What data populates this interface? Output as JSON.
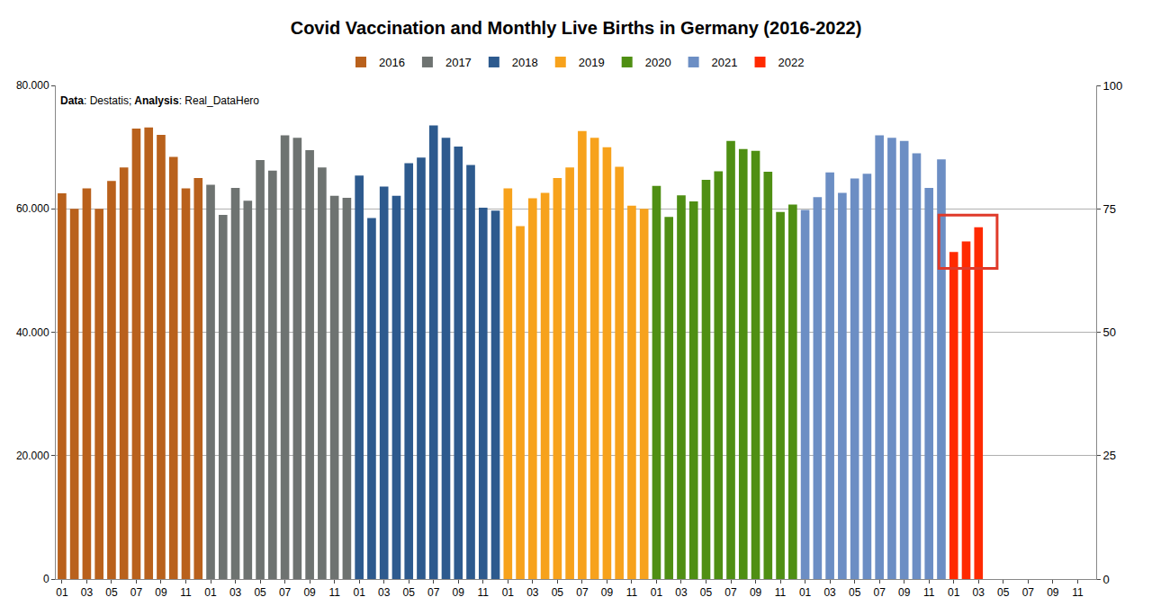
{
  "chart_data": {
    "type": "bar",
    "title": "Covid Vaccination and Monthly Live Births in Germany (2016-2022)",
    "annotations": [
      {
        "text": "Data: Destatis; Analysis: Real_DataHero"
      }
    ],
    "categories": [
      "01",
      null,
      "03",
      null,
      "05",
      null,
      "07",
      null,
      "09",
      null,
      "11",
      null,
      "01",
      null,
      "03",
      null,
      "05",
      null,
      "07",
      null,
      "09",
      null,
      "11",
      null,
      "01",
      null,
      "03",
      null,
      "05",
      null,
      "07",
      null,
      "09",
      null,
      "11",
      null,
      "01",
      null,
      "03",
      null,
      "05",
      null,
      "07",
      null,
      "09",
      null,
      "11",
      null,
      "01",
      null,
      "03",
      null,
      "05",
      null,
      "07",
      null,
      "09",
      null,
      "11",
      null,
      "01",
      null,
      "03",
      null,
      "05",
      null,
      "07",
      null,
      "09",
      null,
      "11",
      null,
      "01",
      null,
      "03",
      null,
      "05",
      null,
      "07",
      null,
      "09",
      null,
      "11",
      null
    ],
    "series": [
      {
        "name": "2016",
        "color": "#b9611c",
        "values": [
          62500,
          60000,
          63300,
          60000,
          64500,
          66700,
          73000,
          73200,
          72000,
          68400,
          63300,
          65000,
          null,
          null,
          null,
          null,
          null,
          null,
          null,
          null,
          null,
          null,
          null,
          null,
          null,
          null,
          null,
          null,
          null,
          null,
          null,
          null,
          null,
          null,
          null,
          null,
          null,
          null,
          null,
          null,
          null,
          null,
          null,
          null,
          null,
          null,
          null,
          null,
          null,
          null,
          null,
          null,
          null,
          null,
          null,
          null,
          null,
          null,
          null,
          null,
          null,
          null,
          null,
          null,
          null,
          null,
          null,
          null,
          null,
          null,
          null,
          null,
          null,
          null,
          null,
          null,
          null,
          null,
          null,
          null,
          null,
          null,
          null,
          null
        ]
      },
      {
        "name": "2017",
        "color": "#6e7371",
        "values": [
          null,
          null,
          null,
          null,
          null,
          null,
          null,
          null,
          null,
          null,
          null,
          null,
          63900,
          59000,
          63400,
          61300,
          67900,
          66200,
          71900,
          71500,
          69500,
          66700,
          62100,
          61800,
          null,
          null,
          null,
          null,
          null,
          null,
          null,
          null,
          null,
          null,
          null,
          null,
          null,
          null,
          null,
          null,
          null,
          null,
          null,
          null,
          null,
          null,
          null,
          null,
          null,
          null,
          null,
          null,
          null,
          null,
          null,
          null,
          null,
          null,
          null,
          null,
          null,
          null,
          null,
          null,
          null,
          null,
          null,
          null,
          null,
          null,
          null,
          null,
          null,
          null,
          null,
          null,
          null,
          null,
          null,
          null,
          null,
          null,
          null,
          null
        ]
      },
      {
        "name": "2018",
        "color": "#2d5a8e",
        "values": [
          null,
          null,
          null,
          null,
          null,
          null,
          null,
          null,
          null,
          null,
          null,
          null,
          null,
          null,
          null,
          null,
          null,
          null,
          null,
          null,
          null,
          null,
          null,
          null,
          65400,
          58500,
          63600,
          62100,
          67400,
          68300,
          73500,
          71500,
          70100,
          67100,
          60200,
          59700,
          null,
          null,
          null,
          null,
          null,
          null,
          null,
          null,
          null,
          null,
          null,
          null,
          null,
          null,
          null,
          null,
          null,
          null,
          null,
          null,
          null,
          null,
          null,
          null,
          null,
          null,
          null,
          null,
          null,
          null,
          null,
          null,
          null,
          null,
          null,
          null,
          null,
          null,
          null,
          null,
          null,
          null,
          null,
          null,
          null,
          null,
          null,
          null
        ]
      },
      {
        "name": "2019",
        "color": "#f7a21c",
        "values": [
          null,
          null,
          null,
          null,
          null,
          null,
          null,
          null,
          null,
          null,
          null,
          null,
          null,
          null,
          null,
          null,
          null,
          null,
          null,
          null,
          null,
          null,
          null,
          null,
          null,
          null,
          null,
          null,
          null,
          null,
          null,
          null,
          null,
          null,
          null,
          null,
          63300,
          57200,
          61700,
          62600,
          65000,
          66700,
          72600,
          71500,
          70000,
          66800,
          60500,
          60000,
          null,
          null,
          null,
          null,
          null,
          null,
          null,
          null,
          null,
          null,
          null,
          null,
          null,
          null,
          null,
          null,
          null,
          null,
          null,
          null,
          null,
          null,
          null,
          null,
          null,
          null,
          null,
          null,
          null,
          null,
          null,
          null,
          null,
          null,
          null,
          null
        ]
      },
      {
        "name": "2020",
        "color": "#4f8f13",
        "values": [
          null,
          null,
          null,
          null,
          null,
          null,
          null,
          null,
          null,
          null,
          null,
          null,
          null,
          null,
          null,
          null,
          null,
          null,
          null,
          null,
          null,
          null,
          null,
          null,
          null,
          null,
          null,
          null,
          null,
          null,
          null,
          null,
          null,
          null,
          null,
          null,
          null,
          null,
          null,
          null,
          null,
          null,
          null,
          null,
          null,
          null,
          null,
          null,
          63700,
          58700,
          62200,
          61200,
          64700,
          66100,
          71000,
          69700,
          69400,
          66000,
          59500,
          60700,
          null,
          null,
          null,
          null,
          null,
          null,
          null,
          null,
          null,
          null,
          null,
          null,
          null,
          null,
          null,
          null,
          null,
          null,
          null,
          null,
          null,
          null,
          null,
          null
        ]
      },
      {
        "name": "2021",
        "color": "#6c8ec4",
        "values": [
          null,
          null,
          null,
          null,
          null,
          null,
          null,
          null,
          null,
          null,
          null,
          null,
          null,
          null,
          null,
          null,
          null,
          null,
          null,
          null,
          null,
          null,
          null,
          null,
          null,
          null,
          null,
          null,
          null,
          null,
          null,
          null,
          null,
          null,
          null,
          null,
          null,
          null,
          null,
          null,
          null,
          null,
          null,
          null,
          null,
          null,
          null,
          null,
          null,
          null,
          null,
          null,
          null,
          null,
          null,
          null,
          null,
          null,
          null,
          null,
          59800,
          61900,
          65900,
          62600,
          64900,
          65700,
          71900,
          71500,
          71000,
          69000,
          63400,
          68000,
          null,
          null,
          null,
          null,
          null,
          null,
          null,
          null,
          null,
          null,
          null,
          null
        ]
      },
      {
        "name": "2022",
        "color": "#ff2a00",
        "values": [
          null,
          null,
          null,
          null,
          null,
          null,
          null,
          null,
          null,
          null,
          null,
          null,
          null,
          null,
          null,
          null,
          null,
          null,
          null,
          null,
          null,
          null,
          null,
          null,
          null,
          null,
          null,
          null,
          null,
          null,
          null,
          null,
          null,
          null,
          null,
          null,
          null,
          null,
          null,
          null,
          null,
          null,
          null,
          null,
          null,
          null,
          null,
          null,
          null,
          null,
          null,
          null,
          null,
          null,
          null,
          null,
          null,
          null,
          null,
          null,
          null,
          null,
          null,
          null,
          null,
          null,
          null,
          null,
          null,
          null,
          null,
          null,
          53000,
          54700,
          57000,
          null,
          null,
          null,
          null,
          null,
          null,
          null,
          null,
          null
        ]
      }
    ],
    "ylim": [
      0,
      80000
    ],
    "yticks": [
      0,
      {
        "value": 20000,
        "label": "20.000"
      },
      {
        "value": 40000,
        "label": "40.000"
      },
      {
        "value": 60000,
        "label": "60.000"
      },
      {
        "value": 80000,
        "label": "80.000"
      }
    ],
    "y2lim": [
      0,
      100
    ],
    "y2ticks": [
      0,
      25,
      50,
      75,
      100
    ],
    "grid": true,
    "legend": "top"
  }
}
